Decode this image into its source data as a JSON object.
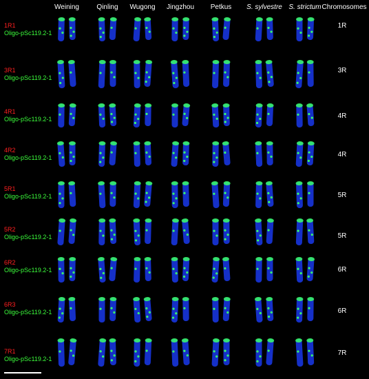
{
  "columns": [
    {
      "label": "Weining",
      "italic": false
    },
    {
      "label": "Qinling",
      "italic": false
    },
    {
      "label": "Wugong",
      "italic": false
    },
    {
      "label": "Jingzhou",
      "italic": false
    },
    {
      "label": "Petkus",
      "italic": false
    },
    {
      "label": "S. sylvestre",
      "italic": true
    },
    {
      "label": "S. strictum",
      "italic": true
    }
  ],
  "chromosomes_header": "Chromosomes",
  "probe_label": "Oligo-pSc119.2-1",
  "rows": [
    {
      "probe": "1R1",
      "chromosome": "1R"
    },
    {
      "probe": "3R1",
      "chromosome": "3R"
    },
    {
      "probe": "4R1",
      "chromosome": "4R"
    },
    {
      "probe": "4R2",
      "chromosome": "4R"
    },
    {
      "probe": "5R1",
      "chromosome": "5R"
    },
    {
      "probe": "5R2",
      "chromosome": "5R"
    },
    {
      "probe": "6R2",
      "chromosome": "6R"
    },
    {
      "probe": "6R3",
      "chromosome": "6R"
    },
    {
      "probe": "7R1",
      "chromosome": "7R"
    }
  ],
  "colors": {
    "background": "#000000",
    "chromosome": "#1530c8",
    "signal": "#39ff6a",
    "probe_name": "#ff2020",
    "probe_label": "#3cff3c",
    "text": "#ffffff"
  }
}
